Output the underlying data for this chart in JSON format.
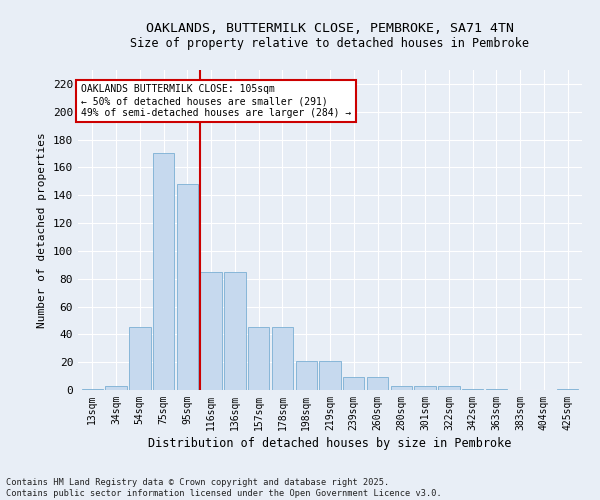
{
  "title1": "OAKLANDS, BUTTERMILK CLOSE, PEMBROKE, SA71 4TN",
  "title2": "Size of property relative to detached houses in Pembroke",
  "xlabel": "Distribution of detached houses by size in Pembroke",
  "ylabel": "Number of detached properties",
  "bar_color": "#c6d9ee",
  "bar_edge_color": "#7aafd4",
  "background_color": "#e8eef6",
  "grid_color": "#ffffff",
  "vline_color": "#cc0000",
  "annotation_box_color": "#cc0000",
  "annotation_text": "OAKLANDS BUTTERMILK CLOSE: 105sqm\n← 50% of detached houses are smaller (291)\n49% of semi-detached houses are larger (284) →",
  "footnote": "Contains HM Land Registry data © Crown copyright and database right 2025.\nContains public sector information licensed under the Open Government Licence v3.0.",
  "categories": [
    "13sqm",
    "34sqm",
    "54sqm",
    "75sqm",
    "95sqm",
    "116sqm",
    "136sqm",
    "157sqm",
    "178sqm",
    "198sqm",
    "219sqm",
    "239sqm",
    "260sqm",
    "280sqm",
    "301sqm",
    "322sqm",
    "342sqm",
    "363sqm",
    "383sqm",
    "404sqm",
    "425sqm"
  ],
  "values": [
    1,
    3,
    45,
    170,
    148,
    85,
    85,
    45,
    45,
    21,
    21,
    9,
    9,
    3,
    3,
    3,
    1,
    1,
    0,
    0,
    1
  ],
  "ylim": [
    0,
    230
  ],
  "yticks": [
    0,
    20,
    40,
    60,
    80,
    100,
    120,
    140,
    160,
    180,
    200,
    220
  ],
  "vline_bin_index": 5,
  "fig_width": 6.0,
  "fig_height": 5.0,
  "dpi": 100
}
